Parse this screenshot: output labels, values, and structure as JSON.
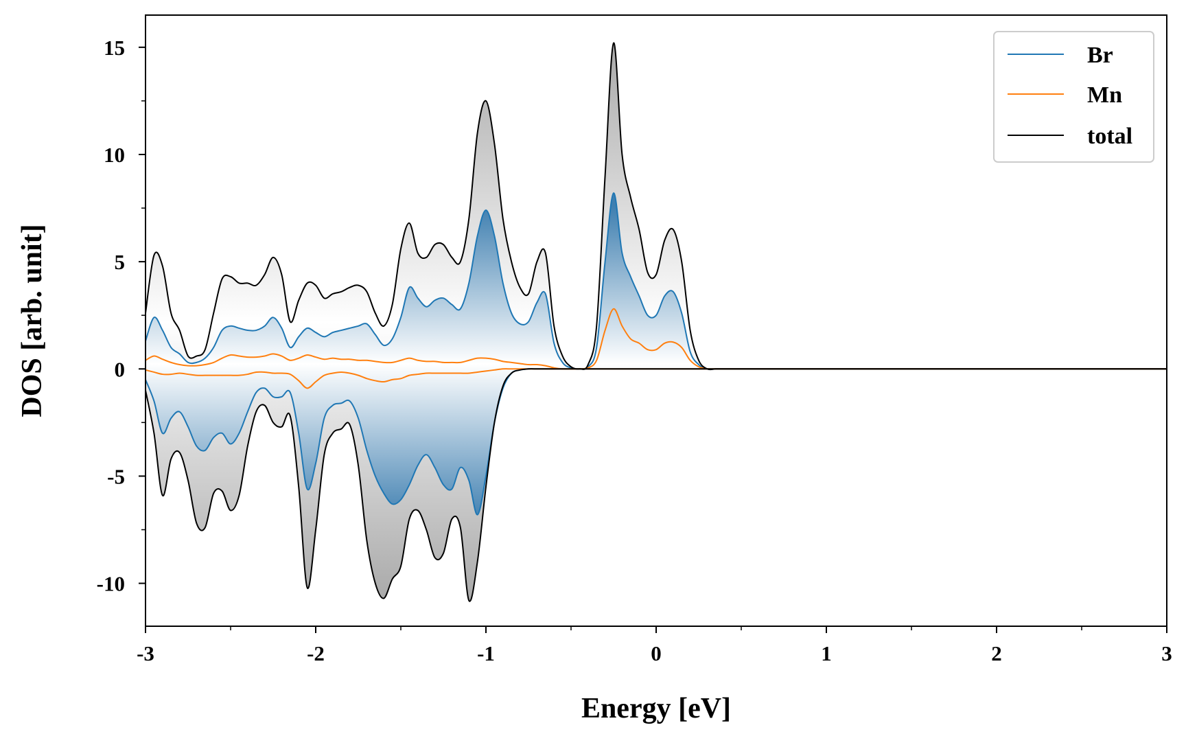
{
  "chart_data": {
    "type": "line",
    "title": "",
    "xlabel": "Energy [eV]",
    "ylabel": "DOS [arb. unit]",
    "xlim": [
      -3,
      3
    ],
    "ylim": [
      -12,
      16.5
    ],
    "x_ticks": [
      -3,
      -2,
      -1,
      0,
      1,
      2,
      3
    ],
    "x_tick_labels": [
      "-3",
      "-2",
      "-1",
      "0",
      "1",
      "2",
      "3"
    ],
    "y_ticks": [
      -10,
      -5,
      0,
      5,
      10,
      15
    ],
    "y_tick_labels": [
      "-10",
      "-5",
      "0",
      "5",
      "10",
      "15"
    ],
    "grid": false,
    "legend_position": "top-right",
    "colors": {
      "Br": "#1f77b4",
      "Mn": "#ff7f0e",
      "total": "#000000",
      "total_fill": "#b3b3b3",
      "br_fill": "#3f7fb0"
    },
    "x": [
      -3.0,
      -2.95,
      -2.9,
      -2.85,
      -2.8,
      -2.75,
      -2.7,
      -2.65,
      -2.6,
      -2.55,
      -2.5,
      -2.45,
      -2.4,
      -2.35,
      -2.3,
      -2.25,
      -2.2,
      -2.15,
      -2.1,
      -2.05,
      -2.0,
      -1.95,
      -1.9,
      -1.85,
      -1.8,
      -1.75,
      -1.7,
      -1.65,
      -1.6,
      -1.55,
      -1.5,
      -1.45,
      -1.4,
      -1.35,
      -1.3,
      -1.25,
      -1.2,
      -1.15,
      -1.1,
      -1.05,
      -1.0,
      -0.95,
      -0.9,
      -0.85,
      -0.8,
      -0.75,
      -0.7,
      -0.65,
      -0.6,
      -0.55,
      -0.5,
      -0.45,
      -0.4,
      -0.35,
      -0.3,
      -0.25,
      -0.2,
      -0.15,
      -0.1,
      -0.05,
      0.0,
      0.05,
      0.1,
      0.15,
      0.2,
      0.25,
      0.3,
      0.35,
      0.4,
      0.45,
      0.5,
      0.6,
      1.0,
      2.0,
      3.0
    ],
    "series": [
      {
        "name": "total",
        "spin_up": [
          2.6,
          5.3,
          4.8,
          2.6,
          1.8,
          0.6,
          0.6,
          0.9,
          2.6,
          4.2,
          4.3,
          4.0,
          4.0,
          3.9,
          4.4,
          5.2,
          4.4,
          2.2,
          3.2,
          4.0,
          3.9,
          3.3,
          3.5,
          3.6,
          3.8,
          3.9,
          3.6,
          2.6,
          2.0,
          3.0,
          5.6,
          6.8,
          5.4,
          5.2,
          5.8,
          5.8,
          5.2,
          5.0,
          7.0,
          11.0,
          12.5,
          10.5,
          7.0,
          5.0,
          3.8,
          3.5,
          5.0,
          5.4,
          2.0,
          0.6,
          0.1,
          0.0,
          0.2,
          2.0,
          9.0,
          15.2,
          10.0,
          8.0,
          6.5,
          4.5,
          4.4,
          6.0,
          6.5,
          5.0,
          1.8,
          0.4,
          0.0,
          0.0,
          0.0,
          0.0,
          0.0,
          0.0,
          0.0,
          0.0,
          0.0
        ],
        "spin_down": [
          -1.0,
          -3.0,
          -5.9,
          -4.2,
          -3.9,
          -5.2,
          -7.2,
          -7.4,
          -5.8,
          -5.7,
          -6.6,
          -5.9,
          -3.6,
          -2.0,
          -1.7,
          -2.5,
          -2.7,
          -2.2,
          -5.5,
          -10.2,
          -7.5,
          -4.0,
          -3.0,
          -2.8,
          -2.6,
          -4.5,
          -8.0,
          -10.0,
          -10.7,
          -9.8,
          -9.2,
          -7.0,
          -6.6,
          -7.5,
          -8.8,
          -8.6,
          -7.0,
          -7.4,
          -10.8,
          -9.0,
          -5.5,
          -2.5,
          -0.8,
          -0.2,
          -0.05,
          0.0,
          0.0,
          0.0,
          0.0,
          0.0,
          0.0,
          0.0,
          0.0,
          0.0,
          0.0,
          0.0,
          0.0,
          0.0,
          0.0,
          0.0,
          0.0,
          0.0,
          0.0,
          0.0,
          0.0,
          0.0,
          0.0,
          0.0,
          0.0,
          0.0,
          0.0,
          0.0,
          0.0,
          0.0,
          0.0
        ]
      },
      {
        "name": "Br",
        "spin_up": [
          1.3,
          2.4,
          1.8,
          1.0,
          0.7,
          0.3,
          0.3,
          0.5,
          1.0,
          1.8,
          2.0,
          1.9,
          1.8,
          1.8,
          2.0,
          2.4,
          1.9,
          1.0,
          1.5,
          1.9,
          1.7,
          1.5,
          1.7,
          1.8,
          1.9,
          2.0,
          2.1,
          1.6,
          1.1,
          1.4,
          2.4,
          3.8,
          3.3,
          2.9,
          3.2,
          3.3,
          3.0,
          2.8,
          4.0,
          6.2,
          7.4,
          6.2,
          4.0,
          2.6,
          2.1,
          2.2,
          3.1,
          3.5,
          1.2,
          0.3,
          0.05,
          0.0,
          0.1,
          1.0,
          5.0,
          8.2,
          5.4,
          4.3,
          3.4,
          2.5,
          2.5,
          3.4,
          3.6,
          2.6,
          0.8,
          0.2,
          0.0,
          0.0,
          0.0,
          0.0,
          0.0,
          0.0,
          0.0,
          0.0,
          0.0
        ],
        "spin_down": [
          -0.5,
          -1.5,
          -3.0,
          -2.3,
          -2.0,
          -2.7,
          -3.6,
          -3.8,
          -3.2,
          -3.0,
          -3.5,
          -3.0,
          -2.0,
          -1.1,
          -0.9,
          -1.3,
          -1.3,
          -1.1,
          -3.0,
          -5.6,
          -4.4,
          -2.3,
          -1.7,
          -1.6,
          -1.5,
          -2.3,
          -3.8,
          -5.0,
          -5.8,
          -6.3,
          -6.1,
          -5.4,
          -4.5,
          -4.0,
          -4.6,
          -5.4,
          -5.6,
          -4.6,
          -5.2,
          -6.8,
          -5.0,
          -2.5,
          -0.9,
          -0.2,
          -0.05,
          0.0,
          0.0,
          0.0,
          0.0,
          0.0,
          0.0,
          0.0,
          0.0,
          0.0,
          0.0,
          0.0,
          0.0,
          0.0,
          0.0,
          0.0,
          0.0,
          0.0,
          0.0,
          0.0,
          0.0,
          0.0,
          0.0,
          0.0,
          0.0,
          0.0,
          0.0,
          0.0,
          0.0,
          0.0,
          0.0
        ]
      },
      {
        "name": "Mn",
        "spin_up": [
          0.4,
          0.6,
          0.45,
          0.3,
          0.2,
          0.15,
          0.15,
          0.2,
          0.3,
          0.5,
          0.65,
          0.6,
          0.55,
          0.55,
          0.6,
          0.7,
          0.6,
          0.4,
          0.5,
          0.65,
          0.55,
          0.45,
          0.5,
          0.45,
          0.45,
          0.4,
          0.4,
          0.35,
          0.3,
          0.3,
          0.4,
          0.5,
          0.4,
          0.35,
          0.35,
          0.3,
          0.3,
          0.3,
          0.4,
          0.5,
          0.5,
          0.45,
          0.35,
          0.3,
          0.25,
          0.2,
          0.2,
          0.15,
          0.05,
          0.0,
          0.0,
          0.0,
          0.05,
          0.4,
          1.8,
          2.8,
          2.0,
          1.4,
          1.2,
          0.9,
          0.9,
          1.2,
          1.25,
          1.0,
          0.4,
          0.1,
          0.0,
          0.0,
          0.0,
          0.0,
          0.0,
          0.0,
          0.0,
          0.0,
          0.0
        ],
        "spin_down": [
          -0.05,
          -0.15,
          -0.25,
          -0.25,
          -0.2,
          -0.25,
          -0.3,
          -0.3,
          -0.3,
          -0.3,
          -0.3,
          -0.3,
          -0.25,
          -0.15,
          -0.15,
          -0.2,
          -0.2,
          -0.25,
          -0.55,
          -0.9,
          -0.6,
          -0.3,
          -0.2,
          -0.15,
          -0.2,
          -0.3,
          -0.45,
          -0.55,
          -0.6,
          -0.5,
          -0.45,
          -0.3,
          -0.25,
          -0.2,
          -0.2,
          -0.2,
          -0.2,
          -0.2,
          -0.2,
          -0.15,
          -0.1,
          -0.05,
          0.0,
          0.0,
          0.0,
          0.0,
          0.0,
          0.0,
          0.0,
          0.0,
          0.0,
          0.0,
          0.0,
          0.0,
          0.0,
          0.0,
          0.0,
          0.0,
          0.0,
          0.0,
          0.0,
          0.0,
          0.0,
          0.0,
          0.0,
          0.0,
          0.0,
          0.0,
          0.0,
          0.0,
          0.0,
          0.0,
          0.0,
          0.0,
          0.0
        ]
      }
    ],
    "legend": [
      "Br",
      "Mn",
      "total"
    ]
  }
}
